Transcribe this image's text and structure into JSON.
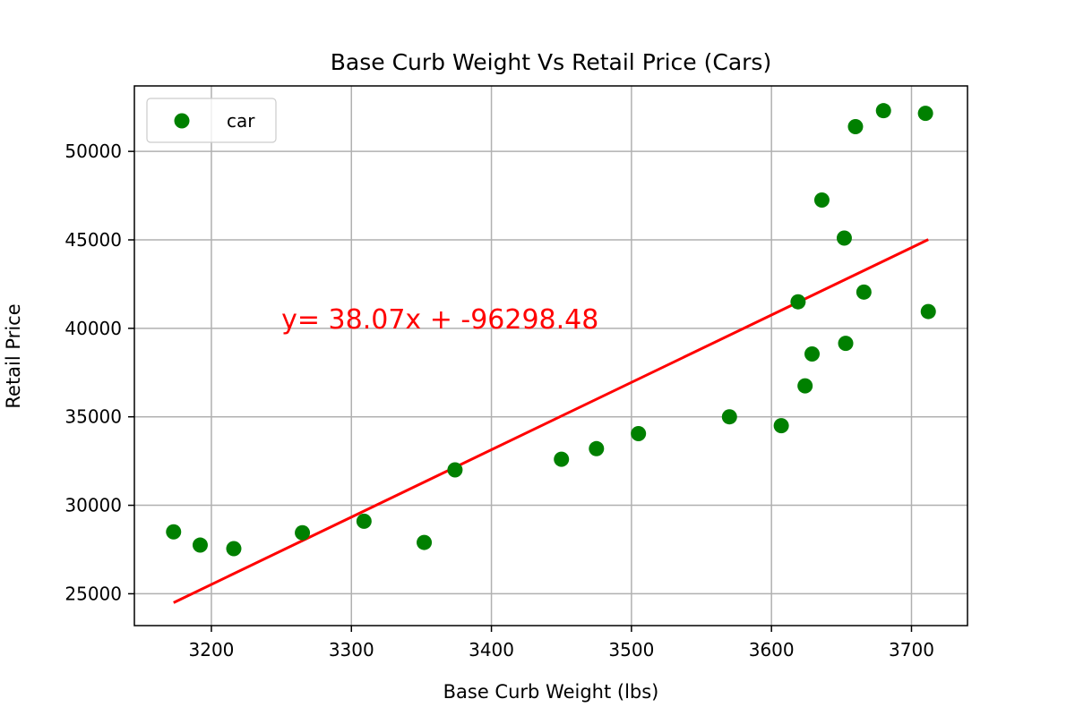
{
  "chart_data": {
    "type": "scatter",
    "title": "Base Curb Weight Vs Retail Price (Cars)",
    "xlabel": "Base Curb Weight (lbs)",
    "ylabel": "Retail Price",
    "xlim": [
      3145,
      3740
    ],
    "ylim": [
      23200,
      53700
    ],
    "xticks": [
      3200,
      3300,
      3400,
      3500,
      3600,
      3700
    ],
    "yticks": [
      25000,
      30000,
      35000,
      40000,
      45000,
      50000
    ],
    "grid": true,
    "legend": {
      "position": "top-left",
      "entries": [
        "car"
      ]
    },
    "colors": {
      "points": "#008000",
      "line": "#ff0000",
      "grid": "#b0b0b0"
    },
    "series": [
      {
        "name": "car",
        "x": [
          3173,
          3192,
          3216,
          3265,
          3309,
          3352,
          3374,
          3450,
          3475,
          3505,
          3570,
          3607,
          3619,
          3624,
          3629,
          3636,
          3652,
          3653,
          3660,
          3666,
          3680,
          3710,
          3712
        ],
        "y": [
          28500,
          27750,
          27550,
          28450,
          29100,
          27900,
          32000,
          32600,
          33200,
          34050,
          35000,
          34500,
          41500,
          36750,
          38550,
          47250,
          45100,
          39150,
          51400,
          42050,
          52300,
          52150,
          40950
        ]
      }
    ],
    "regression": {
      "slope": 38.07,
      "intercept": -96298.48,
      "x_range": [
        3173,
        3712
      ],
      "equation": "y= 38.07x + -96298.48",
      "label_anchor": [
        3250,
        40000
      ]
    }
  }
}
